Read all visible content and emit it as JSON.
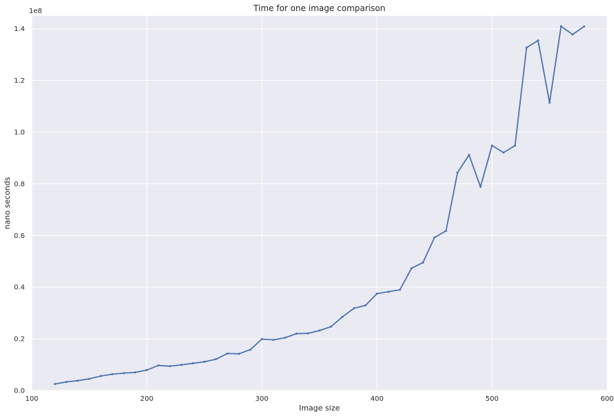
{
  "chart_data": {
    "type": "line",
    "title": "Time for one image comparison",
    "xlabel": "Image size",
    "ylabel": "nano seconds",
    "y_offset_label": "1e8",
    "xlim": [
      100,
      600
    ],
    "ylim": [
      0,
      1.45
    ],
    "y_multiplier": "1e8",
    "xticks": [
      100,
      200,
      300,
      400,
      500,
      600
    ],
    "xtick_labels": [
      "100",
      "200",
      "300",
      "400",
      "500",
      "600"
    ],
    "yticks": [
      0.0,
      0.2,
      0.4,
      0.6,
      0.8,
      1.0,
      1.2,
      1.4
    ],
    "ytick_labels": [
      "0.0",
      "0.2",
      "0.4",
      "0.6",
      "0.8",
      "1.0",
      "1.2",
      "1.4"
    ],
    "grid": true,
    "background": "#eaeaf2",
    "grid_color": "#ffffff",
    "series": [
      {
        "color": "#4c72b0",
        "x": [
          120,
          130,
          140,
          150,
          160,
          170,
          180,
          190,
          200,
          210,
          220,
          230,
          240,
          250,
          260,
          270,
          280,
          290,
          300,
          310,
          320,
          330,
          340,
          350,
          360,
          370,
          380,
          390,
          400,
          410,
          420,
          430,
          440,
          450,
          460,
          470,
          480,
          490,
          500,
          510,
          520,
          530,
          540,
          550,
          560,
          570,
          580
        ],
        "y": [
          0.025,
          0.033,
          0.038,
          0.045,
          0.056,
          0.063,
          0.067,
          0.07,
          0.079,
          0.097,
          0.094,
          0.099,
          0.105,
          0.111,
          0.121,
          0.143,
          0.142,
          0.158,
          0.199,
          0.196,
          0.204,
          0.22,
          0.221,
          0.232,
          0.247,
          0.285,
          0.318,
          0.329,
          0.375,
          0.382,
          0.39,
          0.473,
          0.495,
          0.592,
          0.618,
          0.843,
          0.912,
          0.788,
          0.948,
          0.921,
          0.948,
          1.327,
          1.355,
          1.114,
          1.41,
          1.378,
          1.409
        ]
      }
    ]
  }
}
